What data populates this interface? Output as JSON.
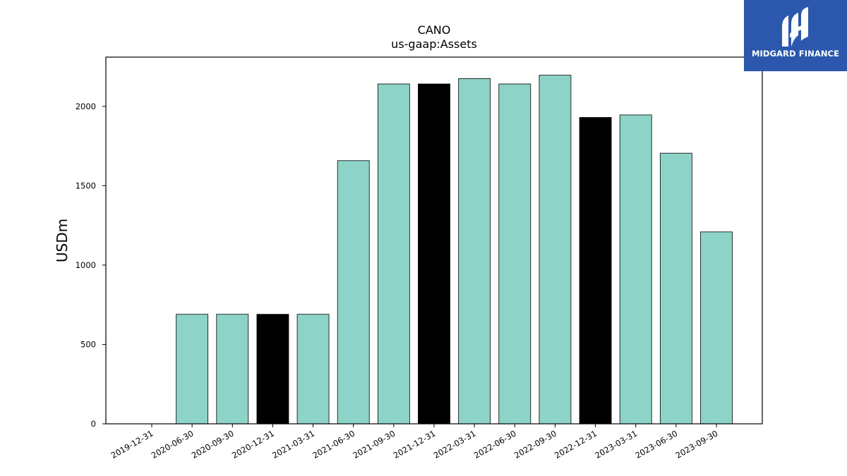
{
  "chart_data": {
    "type": "bar",
    "title": "CANO",
    "subtitle": "us-gaap:Assets",
    "xlabel": "",
    "ylabel": "USDm",
    "ylim": [
      0,
      2310
    ],
    "yticks": [
      0,
      500,
      1000,
      1500,
      2000
    ],
    "grid": false,
    "categories": [
      "2019-12-31",
      "2020-06-30",
      "2020-09-30",
      "2020-12-31",
      "2021-03-31",
      "2021-06-30",
      "2021-09-30",
      "2021-12-31",
      "2022-03-31",
      "2022-06-30",
      "2022-09-30",
      "2022-12-31",
      "2023-03-31",
      "2023-06-30",
      "2023-09-30"
    ],
    "values": [
      0,
      690,
      690,
      690,
      690,
      1658,
      2141,
      2141,
      2175,
      2141,
      2196,
      1930,
      1946,
      1705,
      1209
    ],
    "highlight": [
      false,
      false,
      false,
      true,
      false,
      false,
      false,
      true,
      false,
      false,
      false,
      true,
      false,
      false,
      false
    ],
    "colors": {
      "bar": "#8dd3c7",
      "highlight": "#000000",
      "edge": "#000000"
    }
  },
  "logo": {
    "text": "MIDGARD FINANCE",
    "background": "#2b58ad"
  }
}
